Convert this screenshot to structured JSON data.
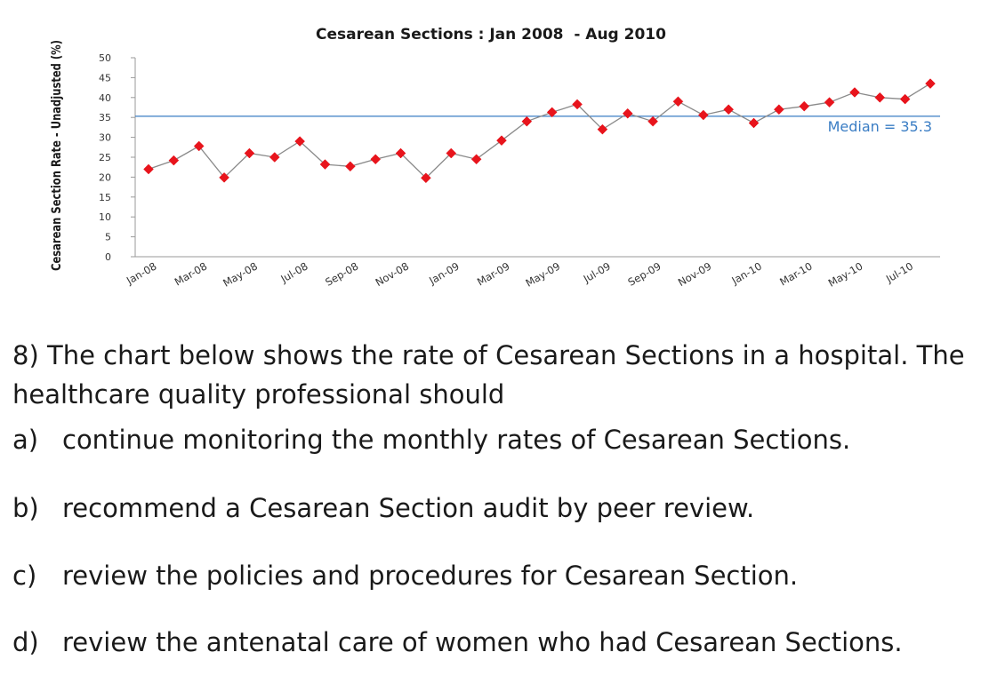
{
  "chart_data": {
    "type": "line",
    "title": "Cesarean Sections : Jan 2008  - Aug 2010",
    "ylabel": "Cesarean Section Rate - Unadjusted (%)",
    "xlabel": "",
    "ylim": [
      0,
      50
    ],
    "yticks": [
      0,
      5,
      10,
      15,
      20,
      25,
      30,
      35,
      40,
      45,
      50
    ],
    "grid": false,
    "x": [
      "Jan-08",
      "Feb-08",
      "Mar-08",
      "Apr-08",
      "May-08",
      "Jun-08",
      "Jul-08",
      "Aug-08",
      "Sep-08",
      "Oct-08",
      "Nov-08",
      "Dec-08",
      "Jan-09",
      "Feb-09",
      "Mar-09",
      "Apr-09",
      "May-09",
      "Jun-09",
      "Jul-09",
      "Aug-09",
      "Sep-09",
      "Oct-09",
      "Nov-09",
      "Dec-09",
      "Jan-10",
      "Feb-10",
      "Mar-10",
      "Apr-10",
      "May-10",
      "Jun-10",
      "Jul-10",
      "Aug-10"
    ],
    "tick_labels": [
      "Jan-08",
      "Mar-08",
      "May-08",
      "Jul-08",
      "Sep-08",
      "Nov-08",
      "Jan-09",
      "Mar-09",
      "May-09",
      "Jul-09",
      "Sep-09",
      "Nov-09",
      "Jan-10",
      "Mar-10",
      "May-10",
      "Jul-10"
    ],
    "series": [
      {
        "values": [
          22,
          24.2,
          27.8,
          19.9,
          26,
          25,
          29,
          23.2,
          22.7,
          24.5,
          26,
          19.8,
          26,
          24.5,
          29.2,
          34,
          36.3,
          38.3,
          32,
          36,
          34,
          39,
          35.6,
          37,
          33.6,
          37,
          37.8,
          38.8,
          41.3,
          40,
          39.6,
          43.5
        ],
        "color": "#e8141c",
        "line_color": "#8a8a8a"
      }
    ],
    "reference_line": {
      "value": 35.3,
      "label": "Median = 35.3",
      "color": "#3a7dc4"
    }
  },
  "question": {
    "stem": "8) The chart below shows the rate of Cesarean Sections in a hospital. The healthcare quality professional should",
    "options": [
      {
        "letter": "a)",
        "text": "continue monitoring the monthly rates of Cesarean Sections."
      },
      {
        "letter": "b)",
        "text": "recommend a Cesarean Section audit by peer review."
      },
      {
        "letter": "c)",
        "text": "review the policies and procedures for Cesarean Section."
      },
      {
        "letter": "d)",
        "text": "review the antenatal care of women who had Cesarean Sections."
      }
    ]
  }
}
